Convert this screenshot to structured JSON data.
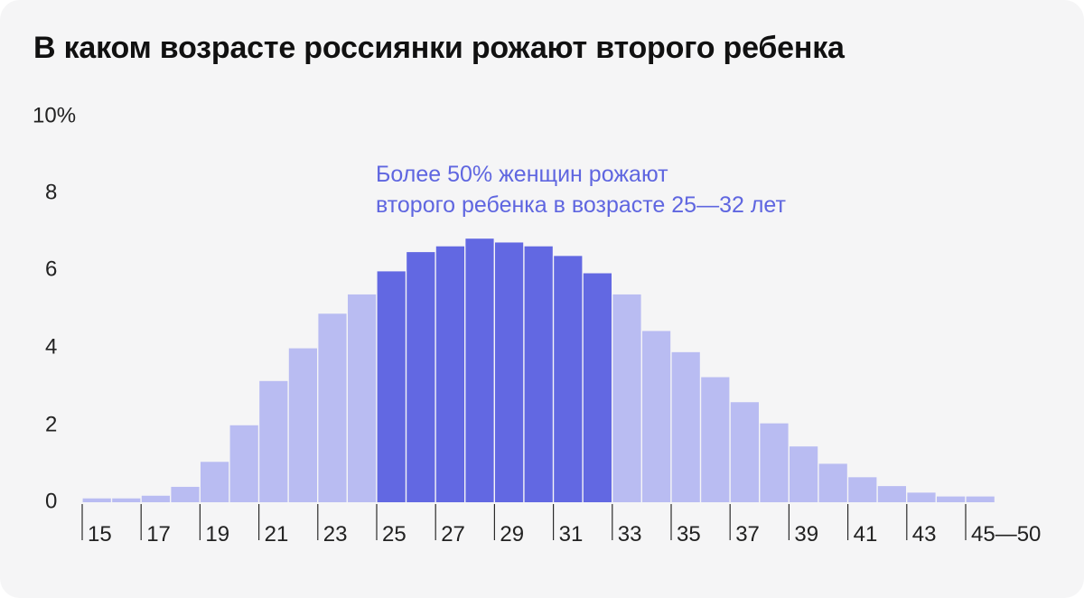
{
  "colors": {
    "highlight": "#6268e2",
    "base": "#b9bcf2",
    "background": "#f5f5f6"
  },
  "chart_data": {
    "type": "bar",
    "title": "В каком возрасте россиянки рожают второго ребенка",
    "xlabel": "",
    "ylabel": "",
    "ylim": [
      0,
      10
    ],
    "yticks": [
      "0",
      "2",
      "4",
      "6",
      "8",
      "10%"
    ],
    "xtick_labels": [
      "15",
      "17",
      "19",
      "21",
      "23",
      "25",
      "27",
      "29",
      "31",
      "33",
      "35",
      "37",
      "39",
      "41",
      "43",
      "45—50"
    ],
    "categories": [
      "15",
      "16",
      "17",
      "18",
      "19",
      "20",
      "21",
      "22",
      "23",
      "24",
      "25",
      "26",
      "27",
      "28",
      "29",
      "30",
      "31",
      "32",
      "33",
      "34",
      "35",
      "36",
      "37",
      "38",
      "39",
      "40",
      "41",
      "42",
      "43",
      "44",
      "45—50"
    ],
    "values": [
      0.1,
      0.1,
      0.17,
      0.4,
      1.05,
      2.0,
      3.15,
      4.0,
      4.9,
      5.4,
      6.0,
      6.5,
      6.65,
      6.85,
      6.75,
      6.65,
      6.4,
      5.95,
      5.4,
      4.45,
      3.9,
      3.25,
      2.6,
      2.05,
      1.45,
      1.0,
      0.65,
      0.42,
      0.25,
      0.15,
      0.15
    ],
    "highlight_range": [
      "25",
      "32"
    ],
    "annotation": [
      "Более 50% женщин рожают",
      "второго ребенка в возрасте 25—32 лет"
    ],
    "grid": false
  }
}
